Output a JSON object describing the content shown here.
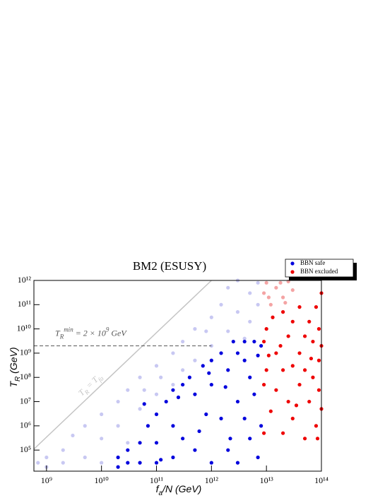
{
  "chart_data": {
    "type": "scatter",
    "title": "BM2 (ESUSY)",
    "x_label": {
      "base": "f",
      "sub": "a",
      "rest": "/N (GeV)"
    },
    "y_label": {
      "base": "T",
      "sub": "R",
      "rest": " (GeV)"
    },
    "log_x": true,
    "log_y": true,
    "xlim": [
      590000000.0,
      100000000000000.0
    ],
    "ylim": [
      13500.0,
      1000000000000.0
    ],
    "xticks": [
      {
        "value": 1000000000.0,
        "label": "10⁹"
      },
      {
        "value": 10000000000.0,
        "label": "10¹⁰"
      },
      {
        "value": 100000000000.0,
        "label": "10¹¹"
      },
      {
        "value": 1000000000000.0,
        "label": "10¹²"
      },
      {
        "value": 10000000000000.0,
        "label": "10¹³"
      },
      {
        "value": 100000000000000.0,
        "label": "10¹⁴"
      }
    ],
    "yticks": [
      {
        "value": 100000.0,
        "label": "10⁵"
      },
      {
        "value": 1000000.0,
        "label": "10⁶"
      },
      {
        "value": 10000000.0,
        "label": "10⁷"
      },
      {
        "value": 100000000.0,
        "label": "10⁸"
      },
      {
        "value": 1000000000.0,
        "label": "10⁹"
      },
      {
        "value": 10000000000.0,
        "label": "10¹⁰"
      },
      {
        "value": 100000000000.0,
        "label": "10¹¹"
      },
      {
        "value": 1000000000000.0,
        "label": "10¹²"
      }
    ],
    "legend": "top-right",
    "reference_line": {
      "y": 2000000000.0,
      "x_end": 1000000000000.0,
      "label": {
        "base": "T",
        "sub": "R",
        "sup": "min",
        "rest": " = 2 × 10",
        "exp": "9",
        "unit": " GeV"
      }
    },
    "diagonal": {
      "x": [
        590000000.0,
        1000000000000.0
      ],
      "y": [
        110000.0,
        1000000000000.0
      ],
      "label": {
        "base": "T",
        "sub": "R",
        "rest": " = T",
        "sub2": "fa"
      }
    },
    "series": [
      {
        "color": "#c8c8f2",
        "points": [
          [
            700000000.0,
            30000.0
          ],
          [
            1000000000.0,
            50000.0
          ],
          [
            1000000000.0,
            20000.0
          ],
          [
            2000000000.0,
            100000.0
          ],
          [
            2000000000.0,
            30000.0
          ],
          [
            3000000000.0,
            400000.0
          ],
          [
            5000000000.0,
            1000000.0
          ],
          [
            5000000000.0,
            50000.0
          ],
          [
            10000000000.0,
            3000000.0
          ],
          [
            10000000000.0,
            300000.0
          ],
          [
            10000000000.0,
            30000.0
          ],
          [
            20000000000.0,
            10000000.0
          ],
          [
            20000000000.0,
            1000000.0
          ],
          [
            30000000000.0,
            30000000.0
          ],
          [
            50000000000.0,
            100000000.0
          ],
          [
            50000000000.0,
            5000000.0
          ],
          [
            100000000000.0,
            300000000.0
          ],
          [
            100000000000.0,
            20000000.0
          ],
          [
            200000000000.0,
            1000000000.0
          ],
          [
            200000000000.0,
            50000000.0
          ],
          [
            300000000000.0,
            3000000000.0
          ],
          [
            300000000000.0,
            200000000.0
          ],
          [
            500000000000.0,
            10000000000.0
          ],
          [
            500000000000.0,
            500000000.0
          ],
          [
            1000000000000.0,
            30000000000.0
          ],
          [
            1000000000000.0,
            2000000000.0
          ],
          [
            1500000000000.0,
            100000000000.0
          ],
          [
            2000000000000.0,
            500000000000.0
          ],
          [
            2000000000000.0,
            8000000000.0
          ],
          [
            3000000000000.0,
            1000000000000.0
          ],
          [
            3000000000000.0,
            50000000000.0
          ],
          [
            5000000000000.0,
            300000000000.0
          ],
          [
            5000000000000.0,
            20000000000.0
          ],
          [
            7000000000000.0,
            800000000000.0
          ],
          [
            7000000000000.0,
            100000000000.0
          ],
          [
            4000000000000.0,
            4000000000.0
          ],
          [
            800000000000.0,
            8000000000.0
          ],
          [
            30000000000.0,
            200000.0
          ],
          [
            60000000000.0,
            30000000.0
          ],
          [
            120000000000.0,
            100000000.0
          ]
        ]
      },
      {
        "color": "#f4a4a4",
        "points": [
          [
            9000000000000.0,
            300000000000.0
          ],
          [
            10000000000000.0,
            800000000000.0
          ],
          [
            12000000000000.0,
            100000000000.0
          ],
          [
            15000000000000.0,
            500000000000.0
          ],
          [
            20000000000000.0,
            200000000000.0
          ],
          [
            25000000000000.0,
            900000000000.0
          ],
          [
            30000000000000.0,
            400000000000.0
          ],
          [
            11000000000000.0,
            200000000000.0
          ],
          [
            18000000000000.0,
            800000000000.0
          ],
          [
            22000000000000.0,
            120000000000.0
          ]
        ]
      },
      {
        "name": "BBN safe",
        "color": "#0000dd",
        "points": [
          [
            20000000000.0,
            20000.0
          ],
          [
            20000000000.0,
            50000.0
          ],
          [
            30000000000.0,
            100000.0
          ],
          [
            30000000000.0,
            30000.0
          ],
          [
            50000000000.0,
            200000.0
          ],
          [
            50000000000.0,
            30000.0
          ],
          [
            70000000000.0,
            1000000.0
          ],
          [
            100000000000.0,
            3000000.0
          ],
          [
            100000000000.0,
            200000.0
          ],
          [
            100000000000.0,
            30000.0
          ],
          [
            150000000000.0,
            10000000.0
          ],
          [
            200000000000.0,
            30000000.0
          ],
          [
            200000000000.0,
            1000000.0
          ],
          [
            200000000000.0,
            50000.0
          ],
          [
            300000000000.0,
            50000000.0
          ],
          [
            300000000000.0,
            300000.0
          ],
          [
            400000000000.0,
            100000000.0
          ],
          [
            500000000000.0,
            20000000.0
          ],
          [
            500000000000.0,
            100000.0
          ],
          [
            700000000000.0,
            300000000.0
          ],
          [
            800000000000.0,
            3000000.0
          ],
          [
            1000000000000.0,
            500000000.0
          ],
          [
            1000000000000.0,
            50000000.0
          ],
          [
            1000000000000.0,
            30000.0
          ],
          [
            1500000000000.0,
            1000000000.0
          ],
          [
            1500000000000.0,
            2000000.0
          ],
          [
            2000000000000.0,
            200000000.0
          ],
          [
            2000000000000.0,
            100000.0
          ],
          [
            2500000000000.0,
            3000000000.0
          ],
          [
            3000000000000.0,
            1000000000.0
          ],
          [
            3000000000000.0,
            10000000.0
          ],
          [
            3000000000000.0,
            30000.0
          ],
          [
            4000000000000.0,
            3000000000.0
          ],
          [
            4000000000000.0,
            500000000.0
          ],
          [
            4000000000000.0,
            2000000.0
          ],
          [
            5000000000000.0,
            100000000.0
          ],
          [
            5000000000000.0,
            300000.0
          ],
          [
            6000000000000.0,
            3000000000.0
          ],
          [
            6000000000000.0,
            20000000.0
          ],
          [
            7000000000000.0,
            800000000.0
          ],
          [
            7000000000000.0,
            50000.0
          ],
          [
            8000000000000.0,
            2000000000.0
          ],
          [
            8000000000000.0,
            1000000.0
          ],
          [
            60000000000.0,
            8000000.0
          ],
          [
            120000000000.0,
            40000.0
          ],
          [
            250000000000.0,
            15000000.0
          ],
          [
            600000000000.0,
            600000.0
          ],
          [
            900000000000.0,
            150000000.0
          ],
          [
            1800000000000.0,
            40000000.0
          ],
          [
            2200000000000.0,
            300000.0
          ]
        ]
      },
      {
        "name": "BBN excluded",
        "color": "#ee0000",
        "points": [
          [
            9000000000000.0,
            3000000000.0
          ],
          [
            9000000000000.0,
            50000000.0
          ],
          [
            9000000000000.0,
            500000.0
          ],
          [
            10000000000000.0,
            10000000000.0
          ],
          [
            10000000000000.0,
            200000000.0
          ],
          [
            12000000000000.0,
            4000000.0
          ],
          [
            13000000000000.0,
            30000000000.0
          ],
          [
            15000000000000.0,
            1000000000.0
          ],
          [
            15000000000000.0,
            30000000.0
          ],
          [
            20000000000000.0,
            50000000000.0
          ],
          [
            20000000000000.0,
            200000000.0
          ],
          [
            20000000000000.0,
            500000.0
          ],
          [
            25000000000000.0,
            5000000000.0
          ],
          [
            25000000000000.0,
            10000000.0
          ],
          [
            30000000000000.0,
            20000000000.0
          ],
          [
            30000000000000.0,
            300000000.0
          ],
          [
            30000000000000.0,
            2000000.0
          ],
          [
            40000000000000.0,
            80000000000.0
          ],
          [
            40000000000000.0,
            1000000000.0
          ],
          [
            40000000000000.0,
            50000000.0
          ],
          [
            50000000000000.0,
            5000000000.0
          ],
          [
            50000000000000.0,
            200000000.0
          ],
          [
            50000000000000.0,
            300000.0
          ],
          [
            60000000000000.0,
            20000000000.0
          ],
          [
            60000000000000.0,
            10000000.0
          ],
          [
            70000000000000.0,
            3000000000.0
          ],
          [
            70000000000000.0,
            100000000.0
          ],
          [
            80000000000000.0,
            80000000000.0
          ],
          [
            80000000000000.0,
            1000000.0
          ],
          [
            90000000000000.0,
            10000000000.0
          ],
          [
            90000000000000.0,
            500000000.0
          ],
          [
            90000000000000.0,
            30000000.0
          ],
          [
            100000000000000.0,
            300000000000.0
          ],
          [
            100000000000000.0,
            2000000000.0
          ],
          [
            100000000000000.0,
            5000000.0
          ],
          [
            18000000000000.0,
            2000000000.0
          ],
          [
            35000000000000.0,
            7000000.0
          ],
          [
            65000000000000.0,
            600000000.0
          ],
          [
            11000000000000.0,
            800000000.0
          ],
          [
            85000000000000.0,
            300000.0
          ]
        ]
      }
    ]
  }
}
